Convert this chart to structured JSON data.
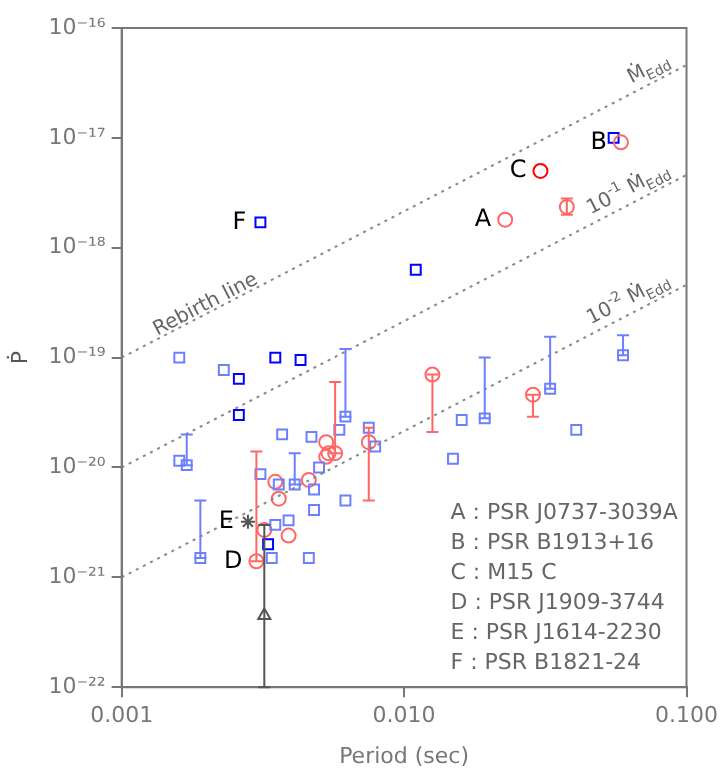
{
  "chart_data": {
    "type": "scatter",
    "xlabel": "Period (sec)",
    "ylabel": "Ṗ",
    "log": "xy",
    "grid": false,
    "legend": false,
    "xlim": [
      0.001,
      0.1
    ],
    "ylim": [
      1e-22,
      1e-16
    ],
    "xticks": [
      {
        "value": 0.001,
        "label": "0.001"
      },
      {
        "value": 0.01,
        "label": "0.010"
      },
      {
        "value": 0.1,
        "label": "0.100"
      }
    ],
    "yticks": [
      {
        "value": 1e-22,
        "label": "10⁻²²"
      },
      {
        "value": 1e-21,
        "label": "10⁻²¹"
      },
      {
        "value": 1e-20,
        "label": "10⁻²⁰"
      },
      {
        "value": 1e-19,
        "label": "10⁻¹⁹"
      },
      {
        "value": 1e-18,
        "label": "10⁻¹⁸"
      },
      {
        "value": 1e-17,
        "label": "10⁻¹⁷"
      },
      {
        "value": 1e-16,
        "label": "10⁻¹⁶"
      }
    ],
    "series": [
      {
        "type": "line",
        "color": "#888888",
        "line_style": "dotted",
        "marker": "none",
        "name": "Ṁ$_{Edd}$",
        "x": [
          0.001,
          0.1
        ],
        "values": [
          1e-19,
          4.6e-17
        ]
      },
      {
        "type": "line",
        "color": "#888888",
        "line_style": "dotted",
        "marker": "none",
        "name": "10$^{-1}$ Ṁ$_{Edd}$",
        "x": [
          0.001,
          0.1
        ],
        "values": [
          1e-20,
          4.6e-18
        ]
      },
      {
        "type": "line",
        "color": "#888888",
        "line_style": "dotted",
        "marker": "none",
        "name": "10$^{-2}$ Ṁ$_{Edd}$",
        "x": [
          0.001,
          0.1
        ],
        "values": [
          1e-21,
          4.6e-19
        ]
      },
      {
        "color": "#6b7fff",
        "marker": "square",
        "x": [
          0.0016,
          0.0023,
          0.0037,
          0.0016,
          0.0017,
          0.0031,
          0.0036,
          0.0041,
          0.0047,
          0.005,
          0.0059,
          0.0062,
          0.0062,
          0.0075,
          0.0079,
          0.0048,
          0.0048,
          0.0149,
          0.016,
          0.0193,
          0.0329,
          0.0407,
          0.0596,
          0.0019,
          0.0034,
          0.0046,
          0.0039,
          0.0035
        ],
        "values": [
          1e-19,
          7.7e-20,
          2e-20,
          1.15e-20,
          1.05e-20,
          8.7e-21,
          7e-21,
          7e-21,
          1.9e-20,
          1e-20,
          2.2e-20,
          2.9e-20,
          5e-21,
          2.3e-20,
          1.55e-20,
          4.1e-21,
          6.3e-21,
          1.2e-20,
          2.7e-20,
          2.8e-20,
          5.2e-20,
          2.2e-20,
          1.05e-19,
          1.5e-21,
          1.5e-21,
          1.5e-21,
          3.3e-21,
          3e-21
        ],
        "errors": [
          null,
          null,
          null,
          null,
          [
            1.05e-20,
            2e-20
          ],
          null,
          null,
          [
            7e-21,
            1.35e-20
          ],
          null,
          null,
          null,
          [
            2.9e-20,
            1.2e-19
          ],
          null,
          null,
          null,
          null,
          null,
          null,
          null,
          [
            2.8e-20,
            1e-19
          ],
          [
            5.2e-20,
            1.55e-19
          ],
          null,
          [
            1.05e-19,
            1.6e-19
          ],
          [
            1.5e-21,
            5e-21
          ],
          null,
          null,
          null,
          null
        ]
      },
      {
        "color": "#ff6666",
        "marker": "circle",
        "x": [
          0.0228,
          0.0377,
          0.0586,
          0.0126,
          0.0286,
          0.0075,
          0.0035,
          0.0046,
          0.0053,
          0.0054,
          0.0057,
          0.0053,
          0.0032,
          0.003,
          0.0039,
          0.0036
        ],
        "values": [
          1.8e-18,
          2.35e-18,
          9.1e-18,
          7e-20,
          4.6e-20,
          1.7e-20,
          7.4e-21,
          7.7e-21,
          1.7e-20,
          1.35e-20,
          1.35e-20,
          1.25e-20,
          2.7e-21,
          1.4e-21,
          2.4e-21,
          5.2e-21
        ],
        "errors": [
          null,
          [
            2e-18,
            2.8e-18
          ],
          null,
          [
            2.1e-20,
            7e-20
          ],
          [
            2.9e-20,
            4.6e-20
          ],
          [
            5e-21,
            2.3e-20
          ],
          null,
          null,
          null,
          null,
          [
            1.35e-20,
            6e-20
          ],
          null,
          null,
          [
            1.4e-21,
            1.4e-20
          ],
          null,
          null
        ]
      },
      {
        "color": "#0000ff",
        "marker": "square",
        "x": [
          0.0031,
          0.0552,
          0.011,
          0.0035,
          0.0043,
          0.0026,
          0.0026,
          0.0033
        ],
        "values": [
          1.7e-18,
          1e-17,
          6.3e-19,
          1e-19,
          9.5e-20,
          6.4e-20,
          3e-20,
          2e-21
        ]
      },
      {
        "color": "#ff0000",
        "marker": "circle",
        "x": [
          0.0304
        ],
        "values": [
          5e-18
        ]
      },
      {
        "color": "#555555",
        "marker": "cross",
        "x": [
          0.0028
        ],
        "values": [
          3.2e-21
        ]
      },
      {
        "color": "#555555",
        "marker": "triangle",
        "x": [
          0.0032
        ],
        "values": [
          4.5e-22
        ],
        "errors": [
          [
            1e-22,
            3e-21
          ]
        ]
      }
    ],
    "annotations": [
      {
        "text": "Rebirth line",
        "x": 0.00135,
        "y": 1.5e-19
      },
      {
        "text": "A",
        "x": 0.0228,
        "y": 1.8e-18
      },
      {
        "text": "B",
        "x": 0.0586,
        "y": 9.1e-18
      },
      {
        "text": "C",
        "x": 0.0304,
        "y": 5e-18
      },
      {
        "text": "D",
        "x": 0.003,
        "y": 1.4e-21
      },
      {
        "text": "E",
        "x": 0.0028,
        "y": 3.2e-21
      },
      {
        "text": "F",
        "x": 0.0031,
        "y": 1.7e-18
      },
      "A : PSR J0737-3039A",
      "B : PSR B1913+16",
      "C : M15 C",
      "D : PSR J1909-3744",
      "E : PSR J1614-2230",
      "F : PSR B1821-24"
    ]
  }
}
